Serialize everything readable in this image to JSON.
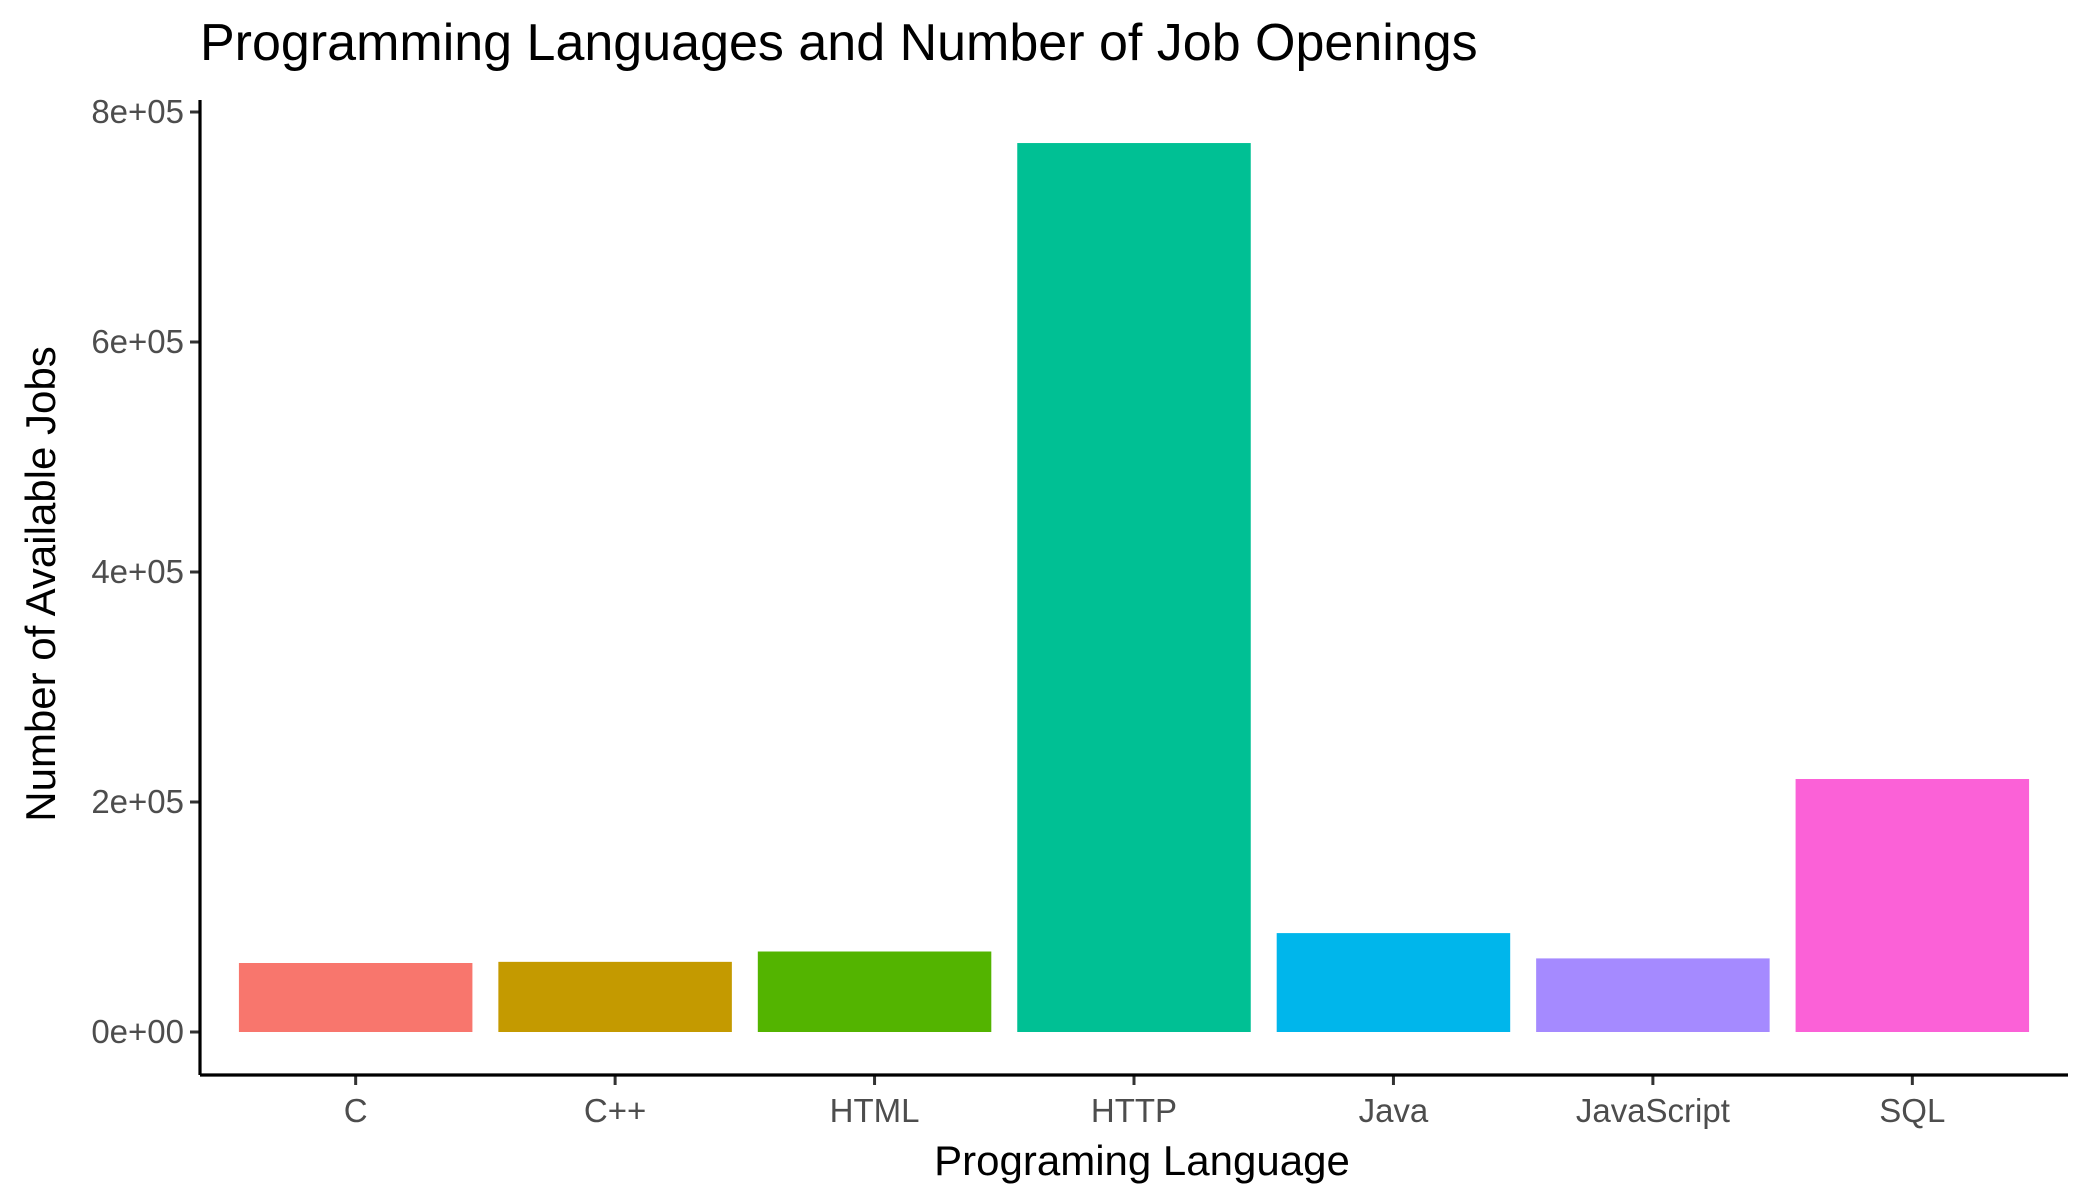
{
  "chart_data": {
    "type": "bar",
    "title": "Programming Languages and Number of Job Openings",
    "xlabel": "Programing Language",
    "ylabel": "Number of Available Jobs",
    "categories": [
      "C",
      "C++",
      "HTML",
      "HTTP",
      "Java",
      "JavaScript",
      "SQL"
    ],
    "values": [
      60000,
      61000,
      70000,
      773000,
      86000,
      64000,
      220000
    ],
    "colors": [
      "#F8766D",
      "#C49A00",
      "#53B400",
      "#00C094",
      "#00B6EB",
      "#A58AFF",
      "#FB61D7"
    ],
    "yticks": [
      0,
      200000,
      400000,
      600000,
      800000
    ],
    "ytick_labels": [
      "0e+00",
      "2e+05",
      "4e+05",
      "6e+05",
      "8e+05"
    ],
    "ylim": [
      0,
      800000
    ],
    "grid": false,
    "legend": "none"
  }
}
